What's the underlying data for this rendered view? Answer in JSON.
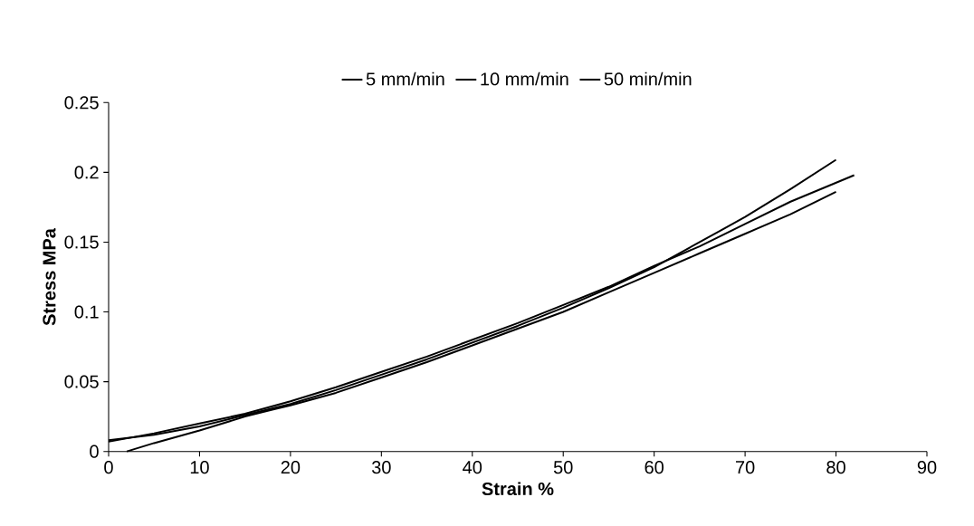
{
  "chart_data": {
    "type": "line",
    "xlabel": "Strain %",
    "ylabel": "Stress MPa",
    "xlim": [
      0,
      90
    ],
    "xticks": [
      0,
      10,
      20,
      30,
      40,
      50,
      60,
      70,
      80,
      90
    ],
    "ylim": [
      0,
      0.25
    ],
    "yticks": [
      0,
      0.05,
      0.1,
      0.15,
      0.2,
      0.25
    ],
    "legend": "top",
    "grid": false,
    "marker": "none",
    "line_style": "solid",
    "series": [
      {
        "name": "5 mm/min",
        "color": "#000000",
        "x": [
          0,
          5,
          10,
          15,
          20,
          25,
          30,
          35,
          40,
          45,
          50,
          55,
          60,
          65,
          70,
          75,
          80
        ],
        "values": [
          0.008,
          0.012,
          0.018,
          0.026,
          0.034,
          0.044,
          0.055,
          0.066,
          0.078,
          0.09,
          0.103,
          0.117,
          0.132,
          0.15,
          0.168,
          0.188,
          0.209
        ]
      },
      {
        "name": "10 mm/min",
        "color": "#000000",
        "x": [
          0,
          5,
          10,
          15,
          20,
          25,
          30,
          35,
          40,
          45,
          50,
          55,
          60,
          65,
          70,
          75,
          82
        ],
        "values": [
          0.007,
          0.013,
          0.02,
          0.027,
          0.036,
          0.046,
          0.057,
          0.068,
          0.08,
          0.092,
          0.105,
          0.118,
          0.133,
          0.147,
          0.163,
          0.179,
          0.198
        ]
      },
      {
        "name": "50 min/min",
        "color": "#000000",
        "x": [
          2,
          5,
          10,
          15,
          18,
          20,
          25,
          30,
          35,
          40,
          45,
          50,
          55,
          60,
          65,
          70,
          75,
          80
        ],
        "values": [
          0,
          0.006,
          0.015,
          0.025,
          0.03,
          0.033,
          0.042,
          0.053,
          0.064,
          0.076,
          0.088,
          0.1,
          0.114,
          0.128,
          0.142,
          0.156,
          0.17,
          0.186
        ]
      }
    ]
  }
}
